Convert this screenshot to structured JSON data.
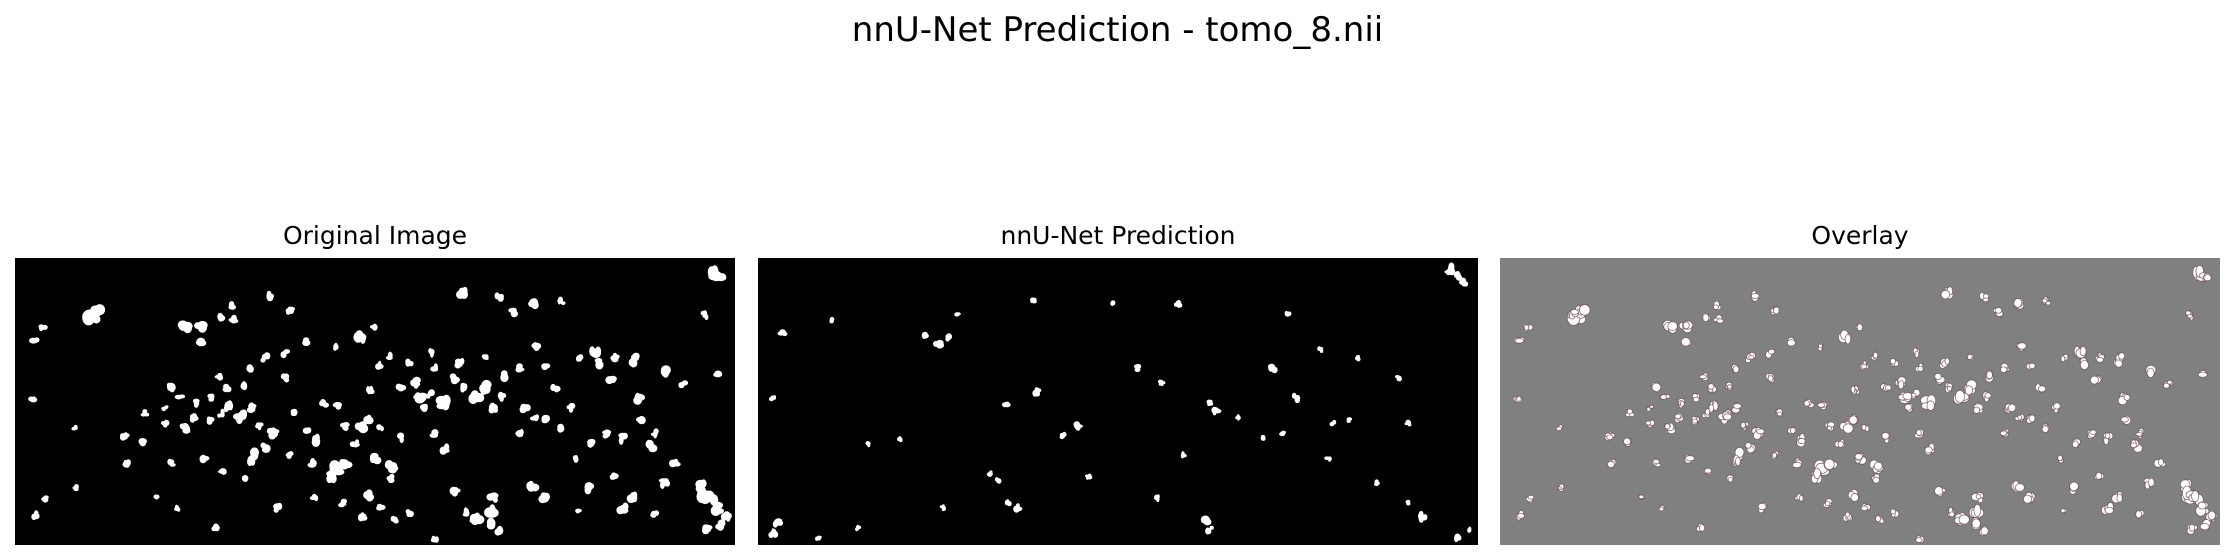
{
  "figure": {
    "title": "nnU-Net Prediction - tomo_8.nii"
  },
  "panels": [
    {
      "title": "Original Image",
      "background": "#000000",
      "blob_color": "#ffffff"
    },
    {
      "title": "nnU-Net Prediction",
      "background": "#000000",
      "blob_color": "#ffffff"
    },
    {
      "title": "Overlay",
      "background": "#808080",
      "blob_color": "#ffffff",
      "edge_color": "#6f4a55"
    }
  ]
}
